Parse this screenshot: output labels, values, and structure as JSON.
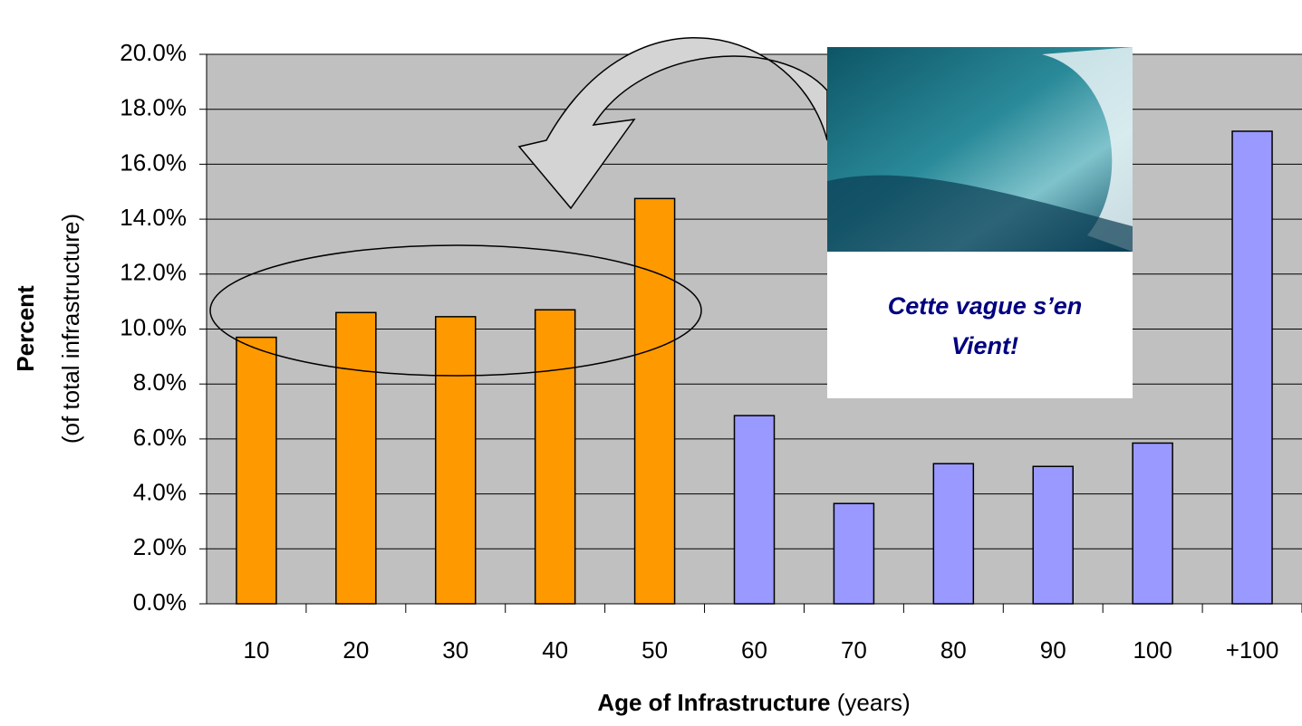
{
  "chart_data": {
    "type": "bar",
    "categories": [
      "10",
      "20",
      "30",
      "40",
      "50",
      "60",
      "70",
      "80",
      "90",
      "100",
      "+100"
    ],
    "values": [
      9.7,
      10.6,
      10.45,
      10.7,
      14.75,
      6.85,
      3.65,
      5.1,
      5.0,
      5.85,
      17.2
    ],
    "colors": [
      "#ff9900",
      "#ff9900",
      "#ff9900",
      "#ff9900",
      "#ff9900",
      "#9999ff",
      "#9999ff",
      "#9999ff",
      "#9999ff",
      "#9999ff",
      "#9999ff"
    ],
    "ylim": [
      0,
      20
    ],
    "yticks": [
      {
        "value": 0,
        "label": "0.0%"
      },
      {
        "value": 2,
        "label": "2.0%"
      },
      {
        "value": 4,
        "label": "4.0%"
      },
      {
        "value": 6,
        "label": "6.0%"
      },
      {
        "value": 8,
        "label": "8.0%"
      },
      {
        "value": 10,
        "label": "10.0%"
      },
      {
        "value": 12,
        "label": "12.0%"
      },
      {
        "value": 14,
        "label": "14.0%"
      },
      {
        "value": 16,
        "label": "16.0%"
      },
      {
        "value": 18,
        "label": "18.0%"
      },
      {
        "value": 20,
        "label": "20.0%"
      }
    ],
    "grid": true,
    "y_label": "Percent",
    "y_label_sub": "(of total infrastructure)",
    "x_label": "Age of Infrastructure",
    "x_label_units": "(years)",
    "annotation": "Cette vague s’en Vient!"
  }
}
